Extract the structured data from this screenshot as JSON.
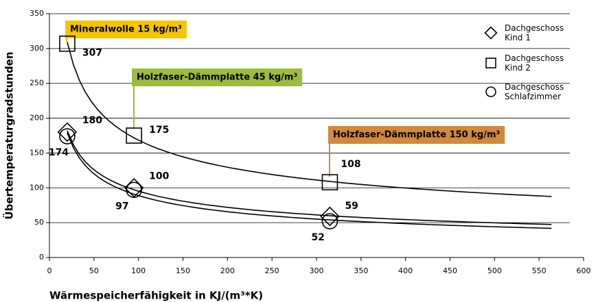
{
  "chart_data": {
    "type": "scatter",
    "xlabel": "Wärmespeicherfähigkeit in KJ/(m³*K)",
    "ylabel": "Übertemperaturgradstunden",
    "xlim": [
      0,
      600
    ],
    "xticks": [
      0,
      50,
      100,
      150,
      200,
      250,
      300,
      350,
      400,
      450,
      500,
      550,
      600
    ],
    "ylim": [
      0,
      350
    ],
    "yticks": [
      0,
      50,
      100,
      150,
      200,
      250,
      300,
      350
    ],
    "grid": true,
    "legend": "upper right",
    "series": [
      {
        "name": "Dachgeschoss Kind 1",
        "marker": "diamond",
        "color": "#000000",
        "x": [
          20,
          95,
          315
        ],
        "values": [
          180,
          100,
          59
        ]
      },
      {
        "name": "Dachgeschoss Kind 2",
        "marker": "square",
        "color": "#000000",
        "x": [
          20,
          95,
          315
        ],
        "values": [
          307,
          175,
          108
        ]
      },
      {
        "name": "Dachgeschoss Schlafzimmer",
        "marker": "circle",
        "color": "#000000",
        "x": [
          20,
          95,
          315
        ],
        "values": [
          174,
          97,
          52
        ]
      }
    ],
    "annotations": [
      {
        "text": "Mineralwolle 15 kg/m³",
        "color": "#f6c400"
      },
      {
        "text": "Holzfaser-Dämmplatte 45 kg/m³",
        "color": "#9dbb3c"
      },
      {
        "text": "Holzfaser-Dämmplatte 150 kg/m³",
        "color": "#d1893a"
      }
    ]
  }
}
